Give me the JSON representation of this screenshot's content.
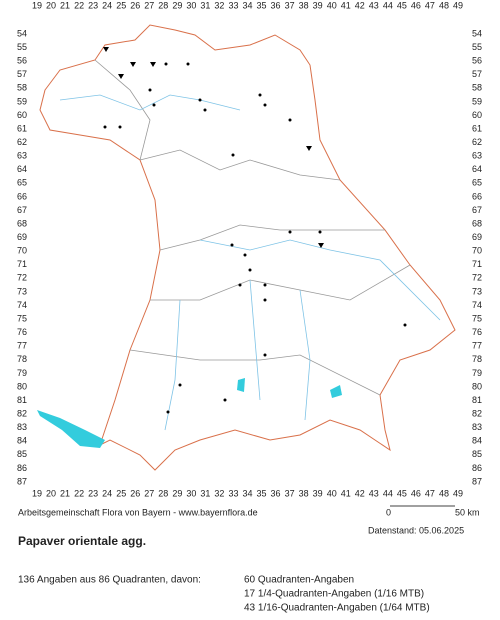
{
  "map": {
    "x_labels": [
      19,
      20,
      21,
      22,
      23,
      24,
      25,
      26,
      27,
      28,
      29,
      30,
      31,
      32,
      33,
      34,
      35,
      36,
      37,
      38,
      39,
      40,
      41,
      42,
      43,
      44,
      45,
      46,
      47,
      48,
      49
    ],
    "y_labels": [
      54,
      55,
      56,
      57,
      58,
      59,
      60,
      61,
      62,
      63,
      64,
      65,
      66,
      67,
      68,
      69,
      70,
      71,
      72,
      73,
      74,
      75,
      76,
      77,
      78,
      79,
      80,
      81,
      82,
      83,
      84,
      85,
      86,
      87
    ],
    "credit": "Arbeitsgemeinschaft Flora von Bayern - www.bayernflora.de",
    "scale_start": "0",
    "scale_end": "50 km",
    "date": "Datenstand: 05.06.2025",
    "title": "Papaver orientale agg.",
    "summary": "136 Angaben aus 86 Quadranten, davon:",
    "counts": [
      "60 Quadranten-Angaben",
      "17 1/4-Quadranten-Angaben (1/16 MTB)",
      "43 1/16-Quadranten-Angaben (1/64 MTB)"
    ]
  }
}
